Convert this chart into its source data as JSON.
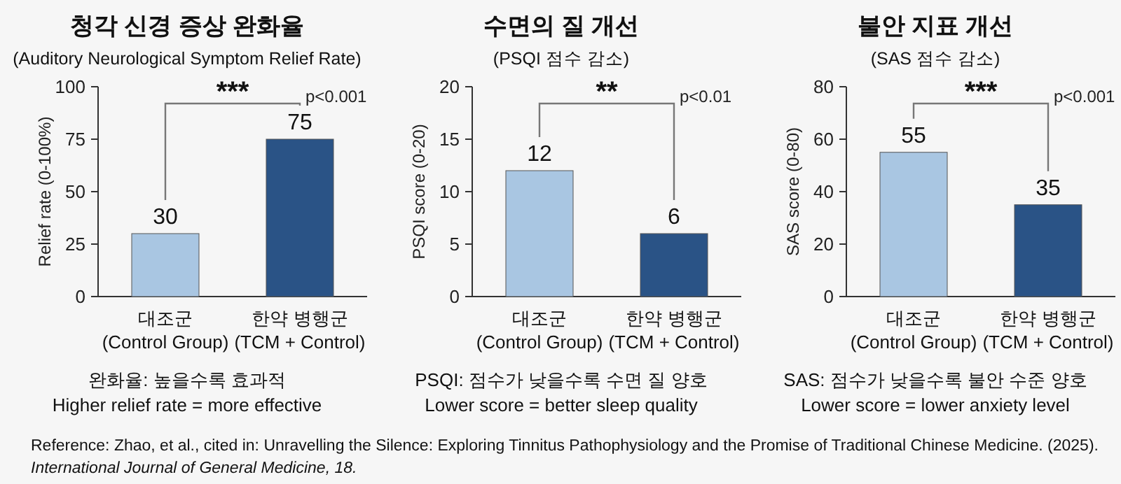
{
  "chart_data": [
    {
      "type": "bar",
      "title": "청각 신경 증상 완화율",
      "subtitle": "(Auditory Neurological Symptom Relief Rate)",
      "ylabel": "Relief rate (0-100%)",
      "categories": [
        "대조군\n(Control Group)",
        "한약 병행군\n(TCM + Control)"
      ],
      "values": [
        30,
        75
      ],
      "colors": [
        "#a9c6e2",
        "#2a5386"
      ],
      "ylim": [
        0,
        100
      ],
      "yticks": [
        0,
        25,
        50,
        75,
        100
      ],
      "data_labels": true,
      "annotations": [
        "***",
        "p<0.001",
        "완화율: 높을수록 효과적",
        "Higher relief rate = more effective"
      ]
    },
    {
      "type": "bar",
      "title": "수면의 질 개선",
      "subtitle": "(PSQI 점수 감소)",
      "ylabel": "PSQI score (0-20)",
      "categories": [
        "대조군\n(Control Group)",
        "한약 병행군\n(TCM + Control)"
      ],
      "values": [
        12,
        6
      ],
      "colors": [
        "#a9c6e2",
        "#2a5386"
      ],
      "ylim": [
        0,
        20
      ],
      "yticks": [
        0,
        5,
        10,
        15,
        20
      ],
      "data_labels": true,
      "annotations": [
        "**",
        "p<0.01",
        "PSQI: 점수가 낮을수록 수면 질 양호",
        "Lower score = better sleep quality"
      ]
    },
    {
      "type": "bar",
      "title": "불안 지표 개선",
      "subtitle": "(SAS 점수 감소)",
      "ylabel": "SAS score (0-80)",
      "categories": [
        "대조군\n(Control Group)",
        "한약 병행군\n(TCM + Control)"
      ],
      "values": [
        55,
        35
      ],
      "colors": [
        "#a9c6e2",
        "#2a5386"
      ],
      "ylim": [
        0,
        80
      ],
      "yticks": [
        0,
        20,
        40,
        60,
        80
      ],
      "data_labels": true,
      "annotations": [
        "***",
        "p<0.001",
        "SAS: 점수가 낮을수록 불안 수준 양호",
        "Lower score = lower anxiety level"
      ]
    },
    {
      "type": "other",
      "annotations": [
        "Reference: Zhao, et al., cited in: Unravelling the Silence: Exploring Tinnitus Pathophysiology and the Promise of Traditional Chinese Medicine. (2025).",
        "International Journal of General Medicine, 18."
      ]
    }
  ]
}
